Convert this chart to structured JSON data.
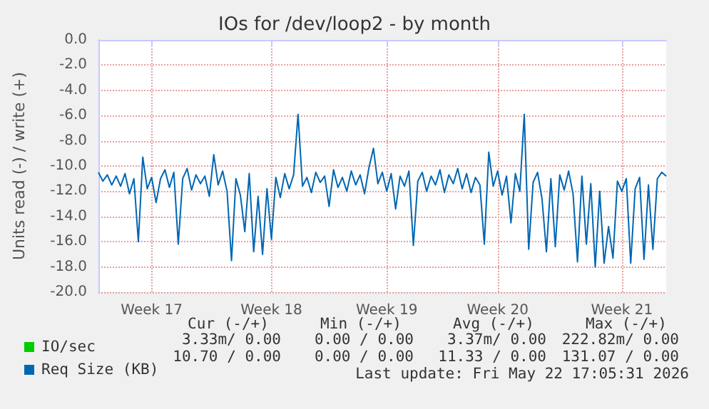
{
  "chart_data": {
    "type": "line",
    "title": "IOs for /dev/loop2 - by month",
    "ylabel": "Units read (-) / write (+)",
    "categories": [
      null,
      null,
      null,
      null,
      null,
      null,
      null,
      null,
      null,
      null,
      null,
      null,
      "Week 17",
      null,
      null,
      null,
      null,
      null,
      null,
      null,
      null,
      null,
      null,
      null,
      null,
      null,
      null,
      null,
      null,
      null,
      null,
      null,
      null,
      null,
      null,
      null,
      null,
      null,
      null,
      "Week 18",
      null,
      null,
      null,
      null,
      null,
      null,
      null,
      null,
      null,
      null,
      null,
      null,
      null,
      null,
      null,
      null,
      null,
      null,
      null,
      null,
      null,
      null,
      null,
      null,
      null,
      "Week 19",
      null,
      null,
      null,
      null,
      null,
      null,
      null,
      null,
      null,
      null,
      null,
      null,
      null,
      null,
      null,
      null,
      null,
      null,
      null,
      null,
      null,
      null,
      null,
      null,
      "Week 20",
      null,
      null,
      null,
      null,
      null,
      null,
      null,
      null,
      null,
      null,
      null,
      null,
      null,
      null,
      null,
      null,
      null,
      null,
      null,
      null,
      null,
      null,
      null,
      null,
      null,
      null,
      null,
      "Week 21",
      null,
      null,
      null,
      null,
      null,
      null,
      null,
      null,
      null,
      null
    ],
    "series": [
      {
        "name": "IO/sec",
        "color": "#00cc00",
        "values": [
          null,
          null,
          null,
          null,
          null,
          null,
          null,
          null,
          null,
          null,
          null,
          null,
          null,
          null,
          null,
          null,
          null,
          null,
          null,
          null,
          null,
          null,
          null,
          null,
          null,
          null,
          null,
          null,
          null,
          null,
          null,
          null,
          null,
          null,
          null,
          null,
          null,
          null,
          null,
          null,
          null,
          null,
          null,
          null,
          null,
          null,
          null,
          null,
          null,
          null,
          null,
          null,
          null,
          null,
          null,
          null,
          null,
          null,
          null,
          null,
          null,
          null,
          null,
          null,
          null,
          null,
          null,
          null,
          null,
          null,
          null,
          null,
          null,
          null,
          null,
          null,
          null,
          null,
          null,
          null,
          null,
          null,
          null,
          null,
          null,
          null,
          null,
          null,
          null,
          null,
          null,
          null,
          null,
          null,
          null,
          null,
          null,
          null,
          null,
          null,
          null,
          null,
          null,
          null,
          null,
          null,
          null,
          null,
          null,
          null,
          null,
          null,
          null,
          null,
          null,
          null,
          null,
          null,
          null,
          null,
          null,
          null,
          null,
          null,
          null,
          null,
          null,
          null,
          null
        ]
      },
      {
        "name": "Req Size (KB)",
        "color": "#0066b3",
        "values": [
          -10.5,
          -11.2,
          -10.7,
          -11.5,
          -10.8,
          -11.6,
          -10.6,
          -12.2,
          -11.0,
          -16.0,
          -9.3,
          -11.8,
          -10.9,
          -12.9,
          -11.0,
          -10.3,
          -11.7,
          -10.5,
          -16.2,
          -11.0,
          -10.2,
          -11.9,
          -10.7,
          -11.4,
          -10.8,
          -12.4,
          -9.1,
          -11.5,
          -10.4,
          -12.0,
          -17.5,
          -11.0,
          -12.3,
          -15.2,
          -10.6,
          -16.8,
          -12.4,
          -17.0,
          -11.8,
          -15.8,
          -10.9,
          -12.5,
          -10.6,
          -11.8,
          -10.7,
          -5.9,
          -11.6,
          -10.9,
          -12.1,
          -10.5,
          -11.3,
          -10.8,
          -13.2,
          -10.3,
          -11.7,
          -10.9,
          -12.0,
          -10.4,
          -11.5,
          -10.7,
          -12.2,
          -10.1,
          -8.6,
          -11.4,
          -10.5,
          -12.0,
          -10.6,
          -13.4,
          -10.8,
          -11.6,
          -10.4,
          -16.3,
          -11.2,
          -10.5,
          -12.0,
          -10.8,
          -11.5,
          -10.3,
          -12.1,
          -10.7,
          -11.4,
          -10.2,
          -11.8,
          -10.6,
          -12.1,
          -10.9,
          -11.5,
          -16.2,
          -8.9,
          -11.6,
          -10.4,
          -12.3,
          -10.8,
          -14.5,
          -10.6,
          -12.0,
          -5.9,
          -16.6,
          -11.3,
          -10.5,
          -12.6,
          -16.8,
          -11.0,
          -16.4,
          -10.7,
          -11.9,
          -10.4,
          -12.2,
          -17.6,
          -10.8,
          -16.2,
          -11.4,
          -18.0,
          -12.0,
          -17.7,
          -14.8,
          -17.3,
          -11.2,
          -12.0,
          -11.0,
          -17.7,
          -11.8,
          -10.9,
          -17.4,
          -11.5,
          -16.6,
          -11.0,
          -10.5,
          -10.8
        ]
      }
    ],
    "ylim": [
      -20,
      0
    ],
    "yticks": [
      {
        "value": -20,
        "label": "-20.0"
      },
      {
        "value": -18,
        "label": "-18.0"
      },
      {
        "value": -16,
        "label": "-16.0"
      },
      {
        "value": -14,
        "label": "-14.0"
      },
      {
        "value": -12,
        "label": "-12.0"
      },
      {
        "value": -10,
        "label": "-10.0"
      },
      {
        "value": -8,
        "label": "-8.0"
      },
      {
        "value": -6,
        "label": "-6.0"
      },
      {
        "value": -4,
        "label": "-4.0"
      },
      {
        "value": -2,
        "label": "-2.0"
      },
      {
        "value": 0,
        "label": "0.0"
      }
    ],
    "grid": true,
    "legend": "bottom left",
    "annotations": [
      "Cur (-/+)",
      "Min (-/+)",
      "Avg (-/+)",
      "Max (-/+)",
      "3.33m/ 0.00",
      "0.00 / 0.00",
      "3.37m/ 0.00",
      "222.82m/ 0.00",
      "10.70 / 0.00",
      "0.00 / 0.00",
      "11.33 / 0.00",
      "131.07 / 0.00",
      "Last update: Fri May 22 17:05:31 2026"
    ]
  }
}
